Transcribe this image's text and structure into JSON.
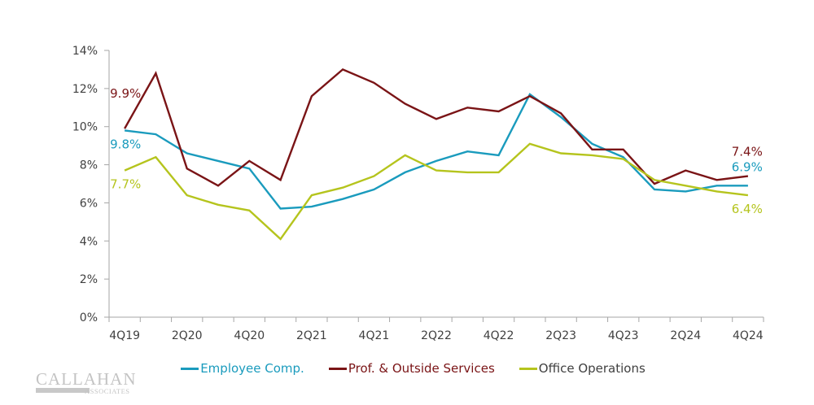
{
  "chart_data": {
    "type": "line",
    "title": "",
    "xlabel": "",
    "ylabel": "",
    "ylim": [
      0,
      14
    ],
    "yticks": [
      "0%",
      "2%",
      "4%",
      "6%",
      "8%",
      "10%",
      "12%",
      "14%"
    ],
    "ytick_values": [
      0,
      2,
      4,
      6,
      8,
      10,
      12,
      14
    ],
    "grid": false,
    "legend_position": "bottom",
    "x": [
      "4Q19",
      "1Q20",
      "2Q20",
      "3Q20",
      "4Q20",
      "1Q21",
      "2Q21",
      "3Q21",
      "4Q21",
      "1Q22",
      "2Q22",
      "3Q22",
      "4Q22",
      "1Q23",
      "2Q23",
      "3Q23",
      "4Q23",
      "1Q24",
      "2Q24",
      "3Q24",
      "4Q24"
    ],
    "xtick_labels": [
      "4Q19",
      "2Q20",
      "4Q20",
      "2Q21",
      "4Q21",
      "2Q22",
      "4Q22",
      "2Q23",
      "4Q23",
      "2Q24",
      "4Q24"
    ],
    "series": [
      {
        "name": "Employee Comp.",
        "color": "#1a9bbd",
        "values": [
          9.8,
          9.6,
          8.6,
          8.2,
          7.8,
          5.7,
          5.8,
          6.2,
          6.7,
          7.6,
          8.2,
          8.7,
          8.5,
          11.7,
          10.5,
          9.1,
          8.4,
          6.7,
          6.6,
          6.9,
          6.9
        ],
        "start_label": "9.8%",
        "end_label": "6.9%"
      },
      {
        "name": "Prof. & Outside Services",
        "color": "#7a1416",
        "values": [
          9.9,
          12.8,
          7.8,
          6.9,
          8.2,
          7.2,
          11.6,
          13.0,
          12.3,
          11.2,
          10.4,
          11.0,
          10.8,
          11.6,
          10.7,
          8.8,
          8.8,
          7.0,
          7.7,
          7.2,
          7.4
        ],
        "start_label": "9.9%",
        "end_label": "7.4%"
      },
      {
        "name": "Office Operations",
        "color": "#b5c41d",
        "values": [
          7.7,
          8.4,
          6.4,
          5.9,
          5.6,
          4.1,
          6.4,
          6.8,
          7.4,
          8.5,
          7.7,
          7.6,
          7.6,
          9.1,
          8.6,
          8.5,
          8.3,
          7.2,
          6.9,
          6.6,
          6.4
        ],
        "start_label": "7.7%",
        "end_label": "6.4%"
      }
    ]
  },
  "legend": [
    {
      "label": "Employee Comp.",
      "color": "#1a9bbd"
    },
    {
      "label": "Prof. & Outside Services",
      "color": "#7a1416"
    },
    {
      "label": "Office Operations",
      "color": "#b5c41d"
    }
  ],
  "logo": {
    "name": "CALLAHAN",
    "sub": "ASSOCIATES"
  }
}
